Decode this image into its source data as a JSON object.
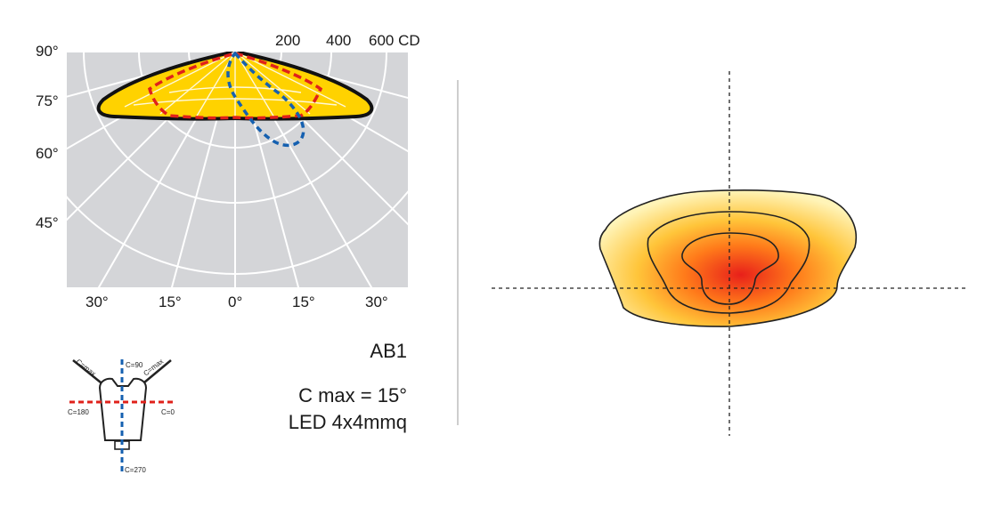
{
  "chart_data": [
    {
      "type": "polar-curve",
      "angle_labels_left": [
        "90°",
        "75°",
        "60°",
        "45°"
      ],
      "angle_labels_bottom": [
        "30°",
        "15°",
        "0°",
        "15°",
        "30°"
      ],
      "radial_ticks": [
        "200",
        "400",
        "600 CD"
      ],
      "curves": [
        {
          "line": "solid",
          "color": "#111111",
          "fill": "#ffd200"
        },
        {
          "line": "dashed",
          "color": "#e0211b"
        },
        {
          "line": "dashed",
          "color": "#1560b0"
        }
      ]
    },
    {
      "type": "isolux-contour",
      "fill_gradient": [
        "#ffef9a",
        "#ff9a1a",
        "#e8201a"
      ],
      "contour_count": 3,
      "crosshair": true
    }
  ],
  "diagram": {
    "c_labels": [
      "C=max",
      "C=90",
      "C=max",
      "C=180",
      "C=0",
      "C=270"
    ],
    "colors": {
      "c0_180": "#e0211b",
      "c90_270": "#1560b0"
    }
  },
  "info": {
    "model": "AB1",
    "cmax": "C max = 15°",
    "led": "LED 4x4mmq"
  }
}
